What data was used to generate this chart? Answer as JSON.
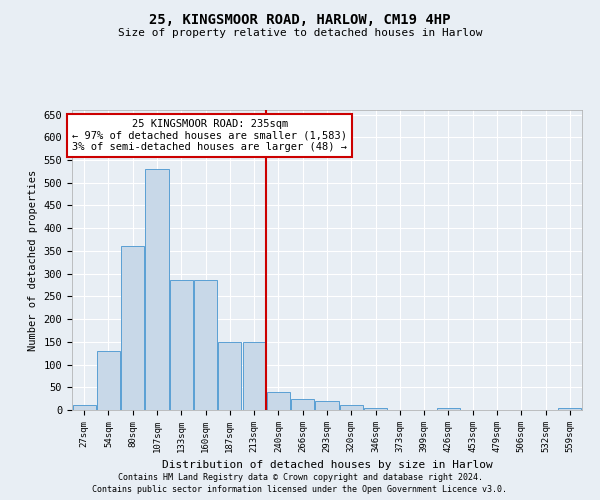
{
  "title1": "25, KINGSMOOR ROAD, HARLOW, CM19 4HP",
  "title2": "Size of property relative to detached houses in Harlow",
  "xlabel": "Distribution of detached houses by size in Harlow",
  "ylabel": "Number of detached properties",
  "footnote1": "Contains HM Land Registry data © Crown copyright and database right 2024.",
  "footnote2": "Contains public sector information licensed under the Open Government Licence v3.0.",
  "bin_labels": [
    "27sqm",
    "54sqm",
    "80sqm",
    "107sqm",
    "133sqm",
    "160sqm",
    "187sqm",
    "213sqm",
    "240sqm",
    "266sqm",
    "293sqm",
    "320sqm",
    "346sqm",
    "373sqm",
    "399sqm",
    "426sqm",
    "453sqm",
    "479sqm",
    "506sqm",
    "532sqm",
    "559sqm"
  ],
  "bar_heights": [
    10,
    130,
    360,
    530,
    285,
    285,
    150,
    150,
    40,
    25,
    20,
    10,
    5,
    0,
    0,
    5,
    0,
    0,
    0,
    0,
    5
  ],
  "bar_color": "#c8d8e8",
  "bar_edge_color": "#5a9fd4",
  "property_line_color": "#cc0000",
  "annotation_text": "25 KINGSMOOR ROAD: 235sqm\n← 97% of detached houses are smaller (1,583)\n3% of semi-detached houses are larger (48) →",
  "annotation_box_color": "white",
  "annotation_box_edge_color": "#cc0000",
  "ylim": [
    0,
    660
  ],
  "yticks": [
    0,
    50,
    100,
    150,
    200,
    250,
    300,
    350,
    400,
    450,
    500,
    550,
    600,
    650
  ],
  "background_color": "#e8eef4",
  "grid_color": "white"
}
